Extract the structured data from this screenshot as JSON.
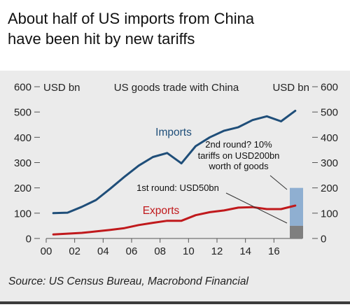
{
  "title_lines": [
    "About half of US imports from China",
    "have been hit by new tariffs"
  ],
  "source": "Source:  US Census Bureau, Macrobond Financial",
  "chart_data": {
    "type": "line",
    "subtitle": "US goods trade with China",
    "left_unit": "USD bn",
    "right_unit": "USD bn",
    "ylim": [
      0,
      600
    ],
    "yticks": [
      0,
      100,
      200,
      300,
      400,
      500,
      600
    ],
    "xlim": [
      2000,
      2018
    ],
    "xticks": [
      {
        "year": 2000,
        "label": "00"
      },
      {
        "year": 2002,
        "label": "02"
      },
      {
        "year": 2004,
        "label": "04"
      },
      {
        "year": 2006,
        "label": "06"
      },
      {
        "year": 2008,
        "label": "08"
      },
      {
        "year": 2010,
        "label": "10"
      },
      {
        "year": 2012,
        "label": "12"
      },
      {
        "year": 2014,
        "label": "14"
      },
      {
        "year": 2016,
        "label": "16"
      }
    ],
    "grid": false,
    "series": [
      {
        "name": "Imports",
        "color": "#1f4e79",
        "x": [
          2000.5,
          2001.5,
          2002.5,
          2003.5,
          2004.5,
          2005.5,
          2006.5,
          2007.5,
          2008.5,
          2009.5,
          2010.5,
          2011.5,
          2012.5,
          2013.5,
          2014.5,
          2015.5,
          2016.5,
          2017.5
        ],
        "values": [
          100,
          102,
          125,
          152,
          197,
          244,
          288,
          322,
          338,
          297,
          365,
          400,
          426,
          440,
          468,
          483,
          463,
          505
        ]
      },
      {
        "name": "Exports",
        "color": "#c0191c",
        "x": [
          2000.5,
          2001.5,
          2002.5,
          2003.5,
          2004.5,
          2005.5,
          2006.5,
          2007.5,
          2008.5,
          2009.5,
          2010.5,
          2011.5,
          2012.5,
          2013.5,
          2014.5,
          2015.5,
          2016.5,
          2017.5
        ],
        "values": [
          16,
          19,
          22,
          28,
          34,
          41,
          53,
          62,
          70,
          70,
          92,
          104,
          111,
          122,
          124,
          116,
          116,
          130
        ]
      }
    ],
    "tariff_bars": [
      {
        "label": "1st round: USD50bn",
        "value": 50,
        "color": "#7f7f7f"
      },
      {
        "label": "2nd round? 10% tariffs on USD200bn worth of goods",
        "value": 200,
        "color": "#8fafd1"
      }
    ],
    "annotations": {
      "second_round_lines": [
        "2nd round? 10%",
        "tariffs on USD200bn",
        "worth of goods"
      ]
    }
  }
}
